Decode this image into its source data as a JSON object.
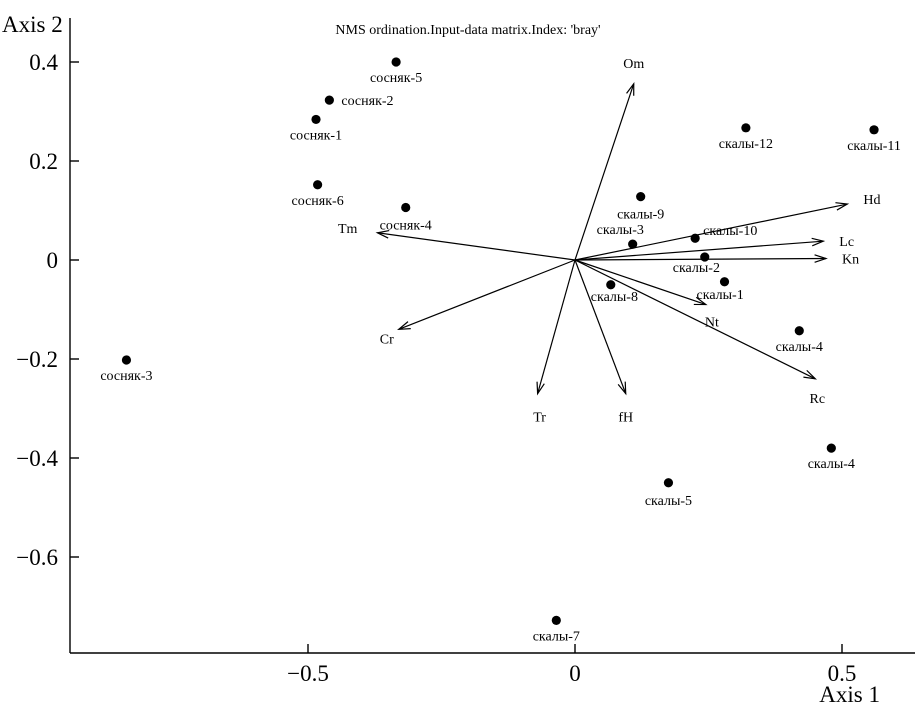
{
  "chart_data": {
    "type": "scatter",
    "title": "NMS ordination.Input-data matrix.Index: 'bray'",
    "xlabel": "Axis 1",
    "ylabel": "Axis 2",
    "xlim": [
      -0.95,
      0.65
    ],
    "ylim": [
      -0.78,
      0.45
    ],
    "x_ticks": [
      -0.5,
      0,
      0.5
    ],
    "x_tick_labels": [
      "−0.5",
      "0",
      "0.5"
    ],
    "y_ticks": [
      0.4,
      0.2,
      0,
      -0.2,
      -0.4,
      -0.6
    ],
    "y_tick_labels": [
      "0.4",
      "0.2",
      "0",
      "−0.2",
      "−0.4",
      "−0.6"
    ],
    "grid": false,
    "points": [
      {
        "label": "сосняк-5",
        "x": -0.335,
        "y": 0.4
      },
      {
        "label": "сосняк-2",
        "x": -0.46,
        "y": 0.323
      },
      {
        "label": "сосняк-1",
        "x": -0.485,
        "y": 0.284
      },
      {
        "label": "сосняк-6",
        "x": -0.482,
        "y": 0.152
      },
      {
        "label": "сосняк-4",
        "x": -0.317,
        "y": 0.106
      },
      {
        "label": "сосняк-3",
        "x": -0.84,
        "y": -0.202
      },
      {
        "label": "скалы-12",
        "x": 0.32,
        "y": 0.267
      },
      {
        "label": "скалы-11",
        "x": 0.56,
        "y": 0.263
      },
      {
        "label": "скалы-9",
        "x": 0.123,
        "y": 0.128
      },
      {
        "label": "скалы-3",
        "x": 0.108,
        "y": 0.032
      },
      {
        "label": "скалы-10",
        "x": 0.225,
        "y": 0.044
      },
      {
        "label": "скалы-2",
        "x": 0.243,
        "y": 0.006
      },
      {
        "label": "скалы-1",
        "x": 0.28,
        "y": -0.044
      },
      {
        "label": "скалы-8",
        "x": 0.067,
        "y": -0.05
      },
      {
        "label": "скалы-4",
        "x": 0.42,
        "y": -0.143
      },
      {
        "label": "скалы-4",
        "x": 0.48,
        "y": -0.38
      },
      {
        "label": "скалы-5",
        "x": 0.175,
        "y": -0.45
      },
      {
        "label": "скалы-7",
        "x": -0.035,
        "y": -0.728
      }
    ],
    "vectors": [
      {
        "label": "Om",
        "x": 0.11,
        "y": 0.356
      },
      {
        "label": "Hd",
        "x": 0.51,
        "y": 0.113
      },
      {
        "label": "Lc",
        "x": 0.465,
        "y": 0.038
      },
      {
        "label": "Kn",
        "x": 0.47,
        "y": 0.003
      },
      {
        "label": "Tm",
        "x": -0.37,
        "y": 0.055
      },
      {
        "label": "Cr",
        "x": -0.33,
        "y": -0.14
      },
      {
        "label": "Nt",
        "x": 0.245,
        "y": -0.09
      },
      {
        "label": "Rc",
        "x": 0.45,
        "y": -0.24
      },
      {
        "label": "Tr",
        "x": -0.07,
        "y": -0.27
      },
      {
        "label": "fH",
        "x": 0.095,
        "y": -0.27
      }
    ]
  }
}
